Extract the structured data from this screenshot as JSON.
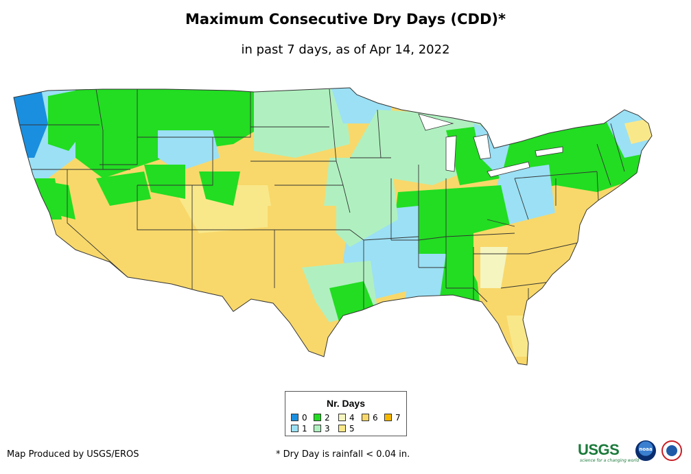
{
  "title": "Maximum Consecutive Dry Days (CDD)*",
  "subtitle": "in past 7 days, as of Apr 14, 2022",
  "legend": {
    "title": "Nr. Days",
    "items": [
      {
        "label": "0",
        "color": "#1a8fe0"
      },
      {
        "label": "1",
        "color": "#9be0f5"
      },
      {
        "label": "2",
        "color": "#22dd22"
      },
      {
        "label": "3",
        "color": "#b0f0c0"
      },
      {
        "label": "4",
        "color": "#f5f5c0"
      },
      {
        "label": "5",
        "color": "#f9e88a"
      },
      {
        "label": "6",
        "color": "#f8d86a"
      },
      {
        "label": "7",
        "color": "#f5b800"
      }
    ]
  },
  "footer": {
    "credit": "Map Produced by USGS/EROS",
    "footnote": "* Dry Day is rainfall < 0.04 in.",
    "usgs_logo": "USGS",
    "usgs_tagline": "science for a changing world",
    "noaa_logo": "noaa",
    "nws_logo": "NWS"
  }
}
